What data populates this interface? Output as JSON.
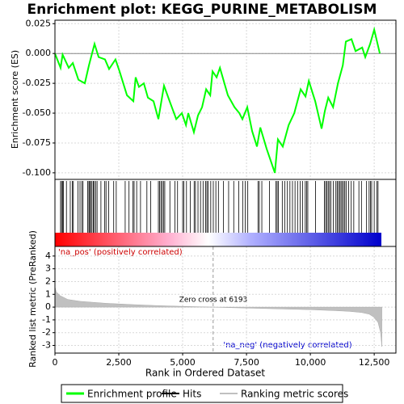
{
  "chart_data": {
    "type": "enrichment",
    "title": "Enrichment plot: KEGG_PURINE_METABOLISM",
    "xlabel": "Rank in Ordered Dataset",
    "xlim": [
      0,
      13350
    ],
    "xticks": [
      0,
      {
        "value": 2500,
        "label": "2,500"
      },
      {
        "value": 5000,
        "label": "5,000"
      },
      {
        "value": 7500,
        "label": "7,500"
      },
      {
        "value": 10000,
        "label": "10,000"
      },
      {
        "value": 12500,
        "label": "12,500"
      }
    ],
    "grid": true,
    "es_panel": {
      "ylabel": "Enrichment score (ES)",
      "ylim": [
        -0.1055,
        0.0279
      ],
      "yticks": [
        0.025,
        {
          "value": 0,
          "label": "0.000"
        },
        -0.025,
        {
          "value": -0.05,
          "label": "-0.050"
        },
        -0.075,
        {
          "value": -0.1,
          "label": "-0.100"
        }
      ],
      "name": "Enrichment profile",
      "color": "#00ff00",
      "x": [
        0,
        220,
        300,
        540,
        700,
        920,
        1170,
        1330,
        1550,
        1710,
        1960,
        2120,
        2370,
        2530,
        2820,
        3070,
        3160,
        3290,
        3480,
        3640,
        3860,
        4050,
        4270,
        4490,
        4750,
        4970,
        5130,
        5220,
        5440,
        5600,
        5760,
        5920,
        6080,
        6170,
        6330,
        6460,
        6770,
        7030,
        7220,
        7340,
        7530,
        7720,
        7910,
        8040,
        8290,
        8610,
        8730,
        8920,
        9150,
        9370,
        9620,
        9810,
        9940,
        10190,
        10440,
        10570,
        10700,
        10890,
        11080,
        11270,
        11390,
        11610,
        11770,
        12030,
        12150,
        12340,
        12500,
        12720
      ],
      "values": [
        0,
        -0.012,
        -0.001,
        -0.012,
        -0.008,
        -0.022,
        -0.025,
        -0.01,
        0.008,
        -0.003,
        -0.005,
        -0.013,
        -0.005,
        -0.015,
        -0.035,
        -0.04,
        -0.02,
        -0.028,
        -0.025,
        -0.037,
        -0.04,
        -0.055,
        -0.027,
        -0.04,
        -0.055,
        -0.05,
        -0.06,
        -0.05,
        -0.066,
        -0.052,
        -0.045,
        -0.03,
        -0.035,
        -0.015,
        -0.02,
        -0.012,
        -0.035,
        -0.045,
        -0.05,
        -0.055,
        -0.045,
        -0.065,
        -0.078,
        -0.062,
        -0.08,
        -0.1,
        -0.072,
        -0.078,
        -0.06,
        -0.05,
        -0.03,
        -0.036,
        -0.023,
        -0.04,
        -0.063,
        -0.048,
        -0.037,
        -0.045,
        -0.025,
        -0.01,
        0.01,
        0.012,
        0.002,
        0.005,
        -0.003,
        0.008,
        0.02,
        0
      ]
    },
    "hits": {
      "name": "Hits",
      "color": "#000000",
      "x": [
        220,
        260,
        300,
        330,
        450,
        600,
        680,
        720,
        900,
        980,
        1050,
        1100,
        1280,
        1330,
        1360,
        1400,
        1450,
        1500,
        1540,
        1600,
        1650,
        1800,
        1950,
        2000,
        2100,
        2300,
        2400,
        2750,
        2900,
        3050,
        3100,
        3200,
        3350,
        3600,
        3750,
        4050,
        4100,
        4150,
        4200,
        4250,
        4300,
        4500,
        4700,
        4800,
        5000,
        5050,
        5150,
        5300,
        5450,
        5500,
        5600,
        5700,
        5800,
        5900,
        5950,
        6000,
        6100,
        6200,
        6300,
        6400,
        6600,
        6800,
        7000,
        7200,
        7350,
        7450,
        7550,
        7950,
        8000,
        8100,
        8400,
        8650,
        8700,
        8750,
        8900,
        9000,
        9100,
        9200,
        9300,
        9400,
        9500,
        9600,
        9700,
        9800,
        9850,
        9900,
        10200,
        10550,
        10600,
        10650,
        10700,
        10750,
        10800,
        10900,
        11000,
        11050,
        11100,
        11150,
        11200,
        11250,
        11300,
        11350,
        11400,
        11500,
        11600,
        11700,
        11900,
        12000,
        12200,
        12300,
        12350,
        12400,
        12500,
        12600,
        12650
      ]
    },
    "metric_panel": {
      "ylabel": "Ranked list metric (PreRanked)",
      "ylim": [
        -3.6,
        4.75
      ],
      "yticks": [
        4,
        3,
        2,
        1,
        0,
        -1,
        -2,
        -3
      ],
      "name": "Ranking metric scores",
      "color": "#c0c0c0",
      "x": [
        0,
        50,
        200,
        500,
        1000,
        2000,
        3000,
        4000,
        5000,
        6193,
        7000,
        8000,
        9000,
        10000,
        11000,
        11500,
        12000,
        12300,
        12500,
        12650,
        12750,
        12800
      ],
      "values": [
        1.6,
        1.2,
        0.9,
        0.6,
        0.45,
        0.3,
        0.2,
        0.12,
        0.06,
        0,
        -0.05,
        -0.1,
        -0.15,
        -0.2,
        -0.28,
        -0.33,
        -0.42,
        -0.55,
        -0.8,
        -1.2,
        -2.0,
        -3.1
      ]
    },
    "zero_cross": 6193,
    "annotations": {
      "pos": "'na_pos' (positively correlated)",
      "zero": "Zero cross at 6193",
      "neg": "'na_neg' (negatively correlated)"
    }
  }
}
